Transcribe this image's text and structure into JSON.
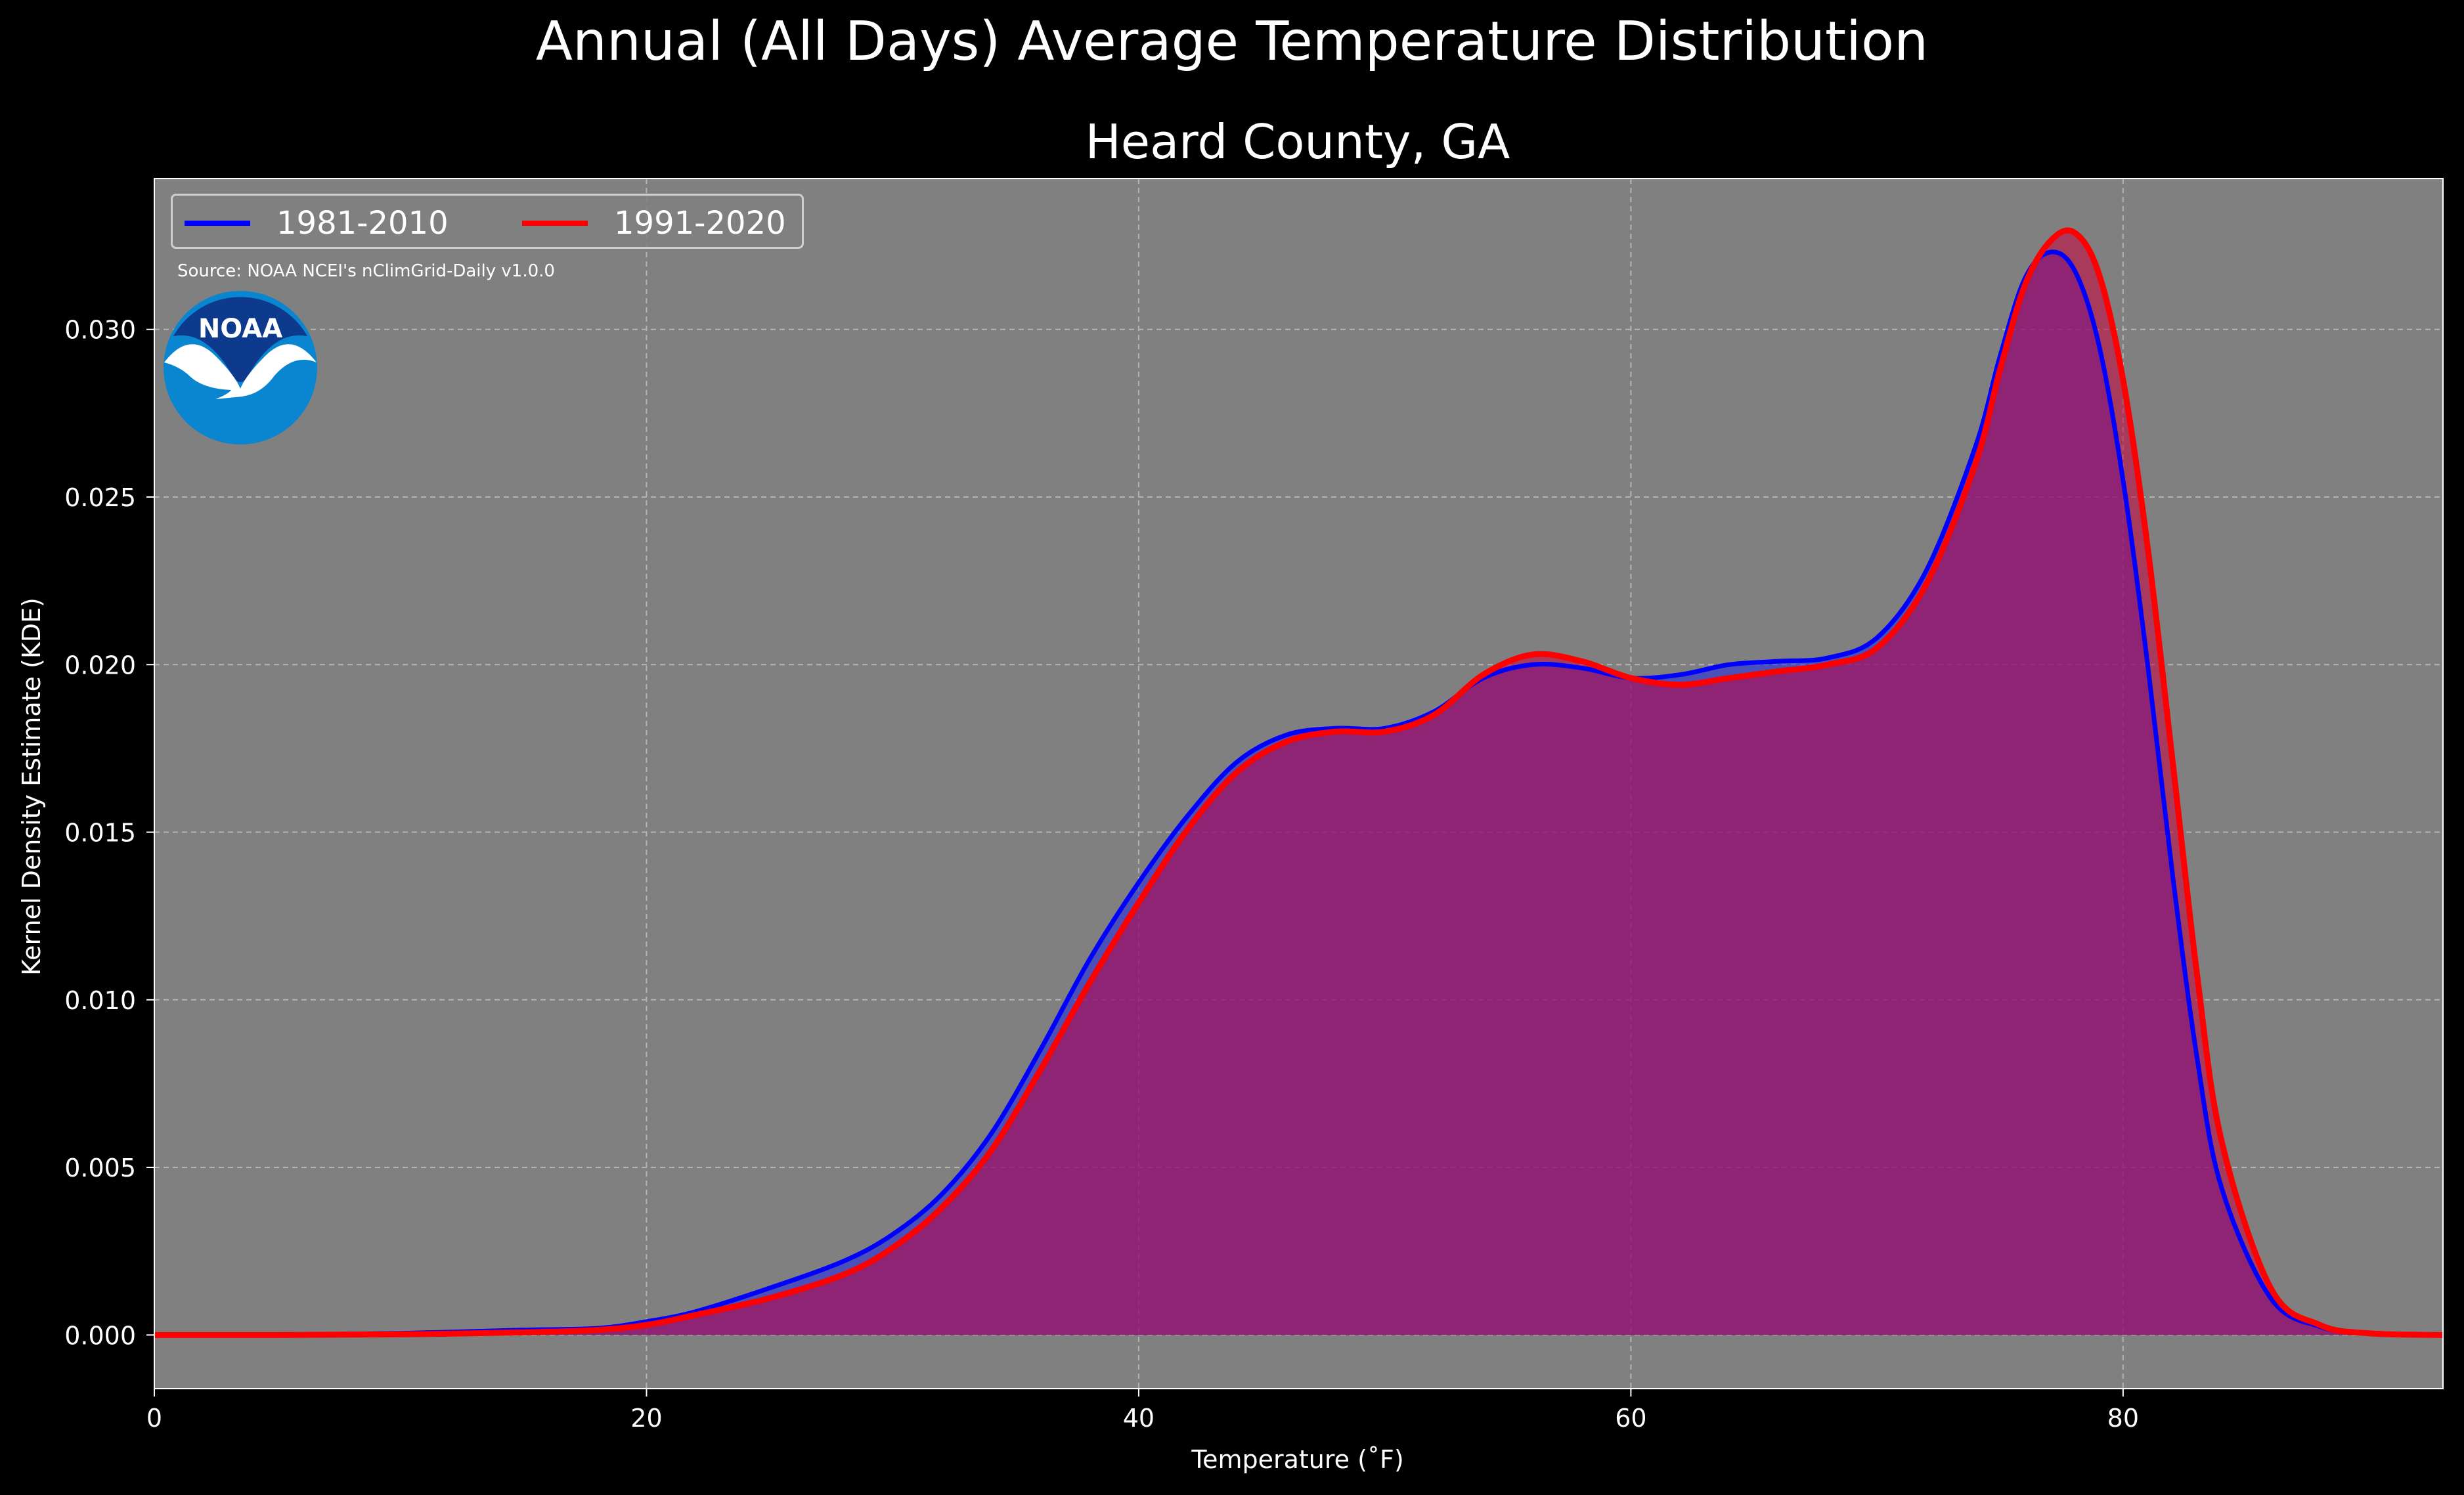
{
  "suptitle": "Annual (All Days) Average Temperature Distribution",
  "source_note": "Source: NOAA NCEI's nClimGrid-Daily v1.0.0",
  "logo_text": "NOAA",
  "colors": {
    "background": "#000000",
    "plot_bg": "#808080",
    "series_1981": "#0000ff",
    "series_1991": "#ff0000",
    "fill_overlap": "#9e1f5c"
  },
  "chart_data": {
    "type": "area",
    "title": "Heard County, GA",
    "xlabel": "Temperature (˚F)",
    "ylabel": "Kernel Density Estimate (KDE)",
    "xlim": [
      0,
      93
    ],
    "ylim": [
      -0.0016,
      0.0345
    ],
    "xticks": [
      0,
      20,
      40,
      60,
      80
    ],
    "yticks": [
      0.0,
      0.005,
      0.01,
      0.015,
      0.02,
      0.025,
      0.03
    ],
    "ytick_labels": [
      "0.000",
      "0.005",
      "0.010",
      "0.015",
      "0.020",
      "0.025",
      "0.030"
    ],
    "grid": true,
    "legend_position": "top-left",
    "series": [
      {
        "name": "1981-2010",
        "color": "#0000ff",
        "x": [
          0,
          5,
          10,
          15,
          18,
          20,
          22,
          25,
          28,
          30,
          32,
          34,
          36,
          38,
          40,
          42,
          44,
          46,
          48,
          50,
          52,
          54,
          56,
          58,
          60,
          62,
          64,
          66,
          68,
          70,
          72,
          74,
          75,
          76,
          77,
          78,
          79,
          80,
          81,
          82,
          83,
          84,
          86,
          88,
          90,
          93
        ],
        "y": [
          0.0,
          0.0,
          5e-05,
          0.00015,
          0.0002,
          0.0004,
          0.0007,
          0.0014,
          0.0022,
          0.003,
          0.0042,
          0.006,
          0.0085,
          0.0112,
          0.0135,
          0.0155,
          0.0171,
          0.0179,
          0.0181,
          0.0181,
          0.0186,
          0.0196,
          0.02,
          0.0199,
          0.0196,
          0.0197,
          0.02,
          0.0201,
          0.0202,
          0.0208,
          0.0228,
          0.0265,
          0.0292,
          0.0315,
          0.0323,
          0.0318,
          0.0296,
          0.0255,
          0.02,
          0.0138,
          0.0083,
          0.0044,
          0.0011,
          0.00025,
          5e-05,
          0.0
        ]
      },
      {
        "name": "1991-2020",
        "color": "#ff0000",
        "x": [
          0,
          5,
          10,
          15,
          18,
          20,
          22,
          25,
          28,
          30,
          32,
          34,
          36,
          38,
          40,
          42,
          44,
          46,
          48,
          50,
          52,
          54,
          56,
          58,
          60,
          62,
          64,
          66,
          68,
          70,
          72,
          74,
          75,
          76,
          77,
          78,
          79,
          80,
          81,
          82,
          83,
          84,
          86,
          88,
          90,
          93
        ],
        "y": [
          0.0,
          0.0,
          2e-05,
          8e-05,
          0.00015,
          0.0003,
          0.0006,
          0.0011,
          0.0018,
          0.0026,
          0.0038,
          0.0055,
          0.0079,
          0.0105,
          0.0129,
          0.0151,
          0.0168,
          0.0177,
          0.018,
          0.018,
          0.0185,
          0.0197,
          0.0203,
          0.0201,
          0.0196,
          0.0194,
          0.0196,
          0.0198,
          0.02,
          0.0205,
          0.0224,
          0.026,
          0.0288,
          0.0313,
          0.0326,
          0.0329,
          0.0317,
          0.0285,
          0.0235,
          0.0172,
          0.0108,
          0.0058,
          0.0014,
          0.0003,
          5e-05,
          0.0
        ]
      }
    ]
  }
}
